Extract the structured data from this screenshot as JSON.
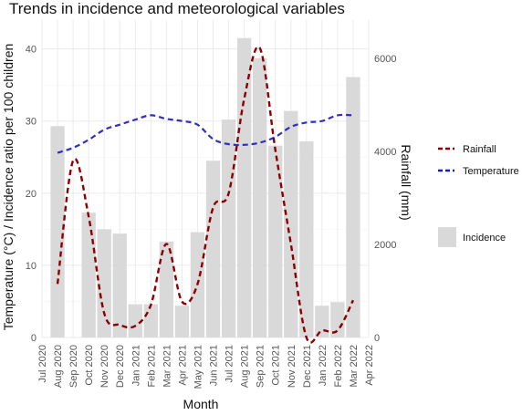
{
  "chart_data": {
    "type": "bar",
    "title": "Trends in incidence and meteorological variables",
    "xlabel": "Month",
    "ylabel_left": "Temperature (°C) / Incidence ratio per 100 children",
    "ylabel_right": "Rainfall (mm)",
    "ylim_left": [
      0,
      44
    ],
    "ylim_right": [
      0,
      6820
    ],
    "yticks_left": [
      "0",
      "10",
      "20",
      "30",
      "40"
    ],
    "yticks_right": [
      "0",
      "2000",
      "4000",
      "6000"
    ],
    "grid": true,
    "legend_position": "right",
    "categories": [
      "Jul 2020",
      "Aug 2020",
      "Sep 2020",
      "Oct 2020",
      "Nov 2020",
      "Dec 2020",
      "Jan 2021",
      "Feb 2021",
      "Mar 2021",
      "Apr 2021",
      "May 2021",
      "Jun 2021",
      "Jul 2021",
      "Aug 2021",
      "Sep 2021",
      "Oct 2021",
      "Nov 2021",
      "Dec 2021",
      "Jan 2022",
      "Feb 2022",
      "Mar 2022",
      "Apr 2022"
    ],
    "series": [
      {
        "name": "Incidence",
        "kind": "bar",
        "axis": "left",
        "color": "#d9d9d9",
        "values": [
          null,
          29.3,
          null,
          17.3,
          15.0,
          14.4,
          4.6,
          4.6,
          13.3,
          4.4,
          14.6,
          24.5,
          30.2,
          41.5,
          38.7,
          26.6,
          31.4,
          27.2,
          4.4,
          4.9,
          36.1,
          null
        ]
      },
      {
        "name": "Rainfall",
        "kind": "line",
        "axis": "right",
        "color": "#8b0000",
        "dash": "dashed",
        "values": [
          null,
          1150,
          3800,
          2600,
          520,
          270,
          250,
          700,
          2010,
          770,
          1150,
          2790,
          3100,
          5130,
          6220,
          4030,
          2010,
          0,
          150,
          150,
          800,
          null
        ]
      },
      {
        "name": "Temperature",
        "kind": "line",
        "axis": "left",
        "color": "#1a1ab8",
        "dash": "dashed",
        "values": [
          null,
          25.6,
          26.3,
          27.4,
          28.8,
          29.5,
          30.2,
          30.8,
          30.3,
          30.0,
          29.5,
          27.5,
          26.8,
          26.7,
          27.0,
          27.8,
          29.2,
          29.8,
          30.0,
          30.8,
          30.8,
          null
        ]
      }
    ]
  },
  "colors": {
    "panel_background": "#ffffff",
    "grid_major": "#ebebeb",
    "grid_minor": "#f5f5f5",
    "bar": "#d9d9d9",
    "rainfall": "#8b0000",
    "temperature": "#1a1ab8"
  }
}
